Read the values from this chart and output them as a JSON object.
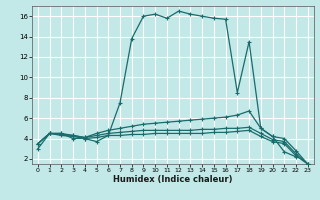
{
  "xlabel": "Humidex (Indice chaleur)",
  "background_color": "#c2e8e8",
  "grid_color": "#ffffff",
  "line_color": "#1a6b6b",
  "xlim": [
    -0.5,
    23.5
  ],
  "ylim": [
    1.5,
    17
  ],
  "xticks": [
    0,
    1,
    2,
    3,
    4,
    5,
    6,
    7,
    8,
    9,
    10,
    11,
    12,
    13,
    14,
    15,
    16,
    17,
    18,
    19,
    20,
    21,
    22,
    23
  ],
  "yticks": [
    2,
    4,
    6,
    8,
    10,
    12,
    14,
    16
  ],
  "lines": [
    {
      "x": [
        0,
        1,
        2,
        3,
        4,
        5,
        6,
        7,
        8,
        9,
        10,
        11,
        12,
        13,
        14,
        15,
        16,
        17,
        18,
        19,
        20,
        21,
        22
      ],
      "y": [
        3.0,
        4.5,
        4.5,
        4.0,
        4.0,
        3.7,
        4.3,
        7.5,
        13.8,
        16.0,
        16.2,
        15.8,
        16.5,
        16.2,
        16.0,
        15.8,
        15.7,
        8.5,
        13.5,
        5.0,
        4.2,
        2.7,
        2.2
      ]
    },
    {
      "x": [
        0,
        1,
        2,
        3,
        4,
        5,
        6,
        7,
        8,
        9,
        10,
        11,
        12,
        13,
        14,
        15,
        16,
        17,
        18,
        19,
        20,
        21,
        22,
        23
      ],
      "y": [
        3.5,
        4.5,
        4.5,
        4.3,
        4.1,
        4.5,
        4.8,
        5.0,
        5.2,
        5.4,
        5.5,
        5.6,
        5.7,
        5.8,
        5.9,
        6.0,
        6.1,
        6.3,
        6.7,
        5.0,
        4.2,
        4.0,
        2.8,
        1.5
      ]
    },
    {
      "x": [
        0,
        1,
        2,
        3,
        4,
        5,
        6,
        7,
        8,
        9,
        10,
        11,
        12,
        13,
        14,
        15,
        16,
        17,
        18,
        19,
        20,
        21,
        22,
        23
      ],
      "y": [
        3.5,
        4.5,
        4.4,
        4.3,
        4.1,
        4.3,
        4.5,
        4.6,
        4.7,
        4.8,
        4.8,
        4.8,
        4.8,
        4.8,
        4.9,
        4.9,
        5.0,
        5.0,
        5.1,
        4.5,
        3.9,
        3.7,
        2.5,
        1.5
      ]
    },
    {
      "x": [
        0,
        1,
        2,
        3,
        4,
        5,
        6,
        7,
        8,
        9,
        10,
        11,
        12,
        13,
        14,
        15,
        16,
        17,
        18,
        19,
        20,
        21,
        22,
        23
      ],
      "y": [
        3.5,
        4.5,
        4.3,
        4.2,
        4.0,
        4.1,
        4.3,
        4.3,
        4.4,
        4.4,
        4.5,
        4.5,
        4.5,
        4.5,
        4.5,
        4.6,
        4.6,
        4.7,
        4.8,
        4.2,
        3.7,
        3.5,
        2.3,
        1.5
      ]
    }
  ]
}
